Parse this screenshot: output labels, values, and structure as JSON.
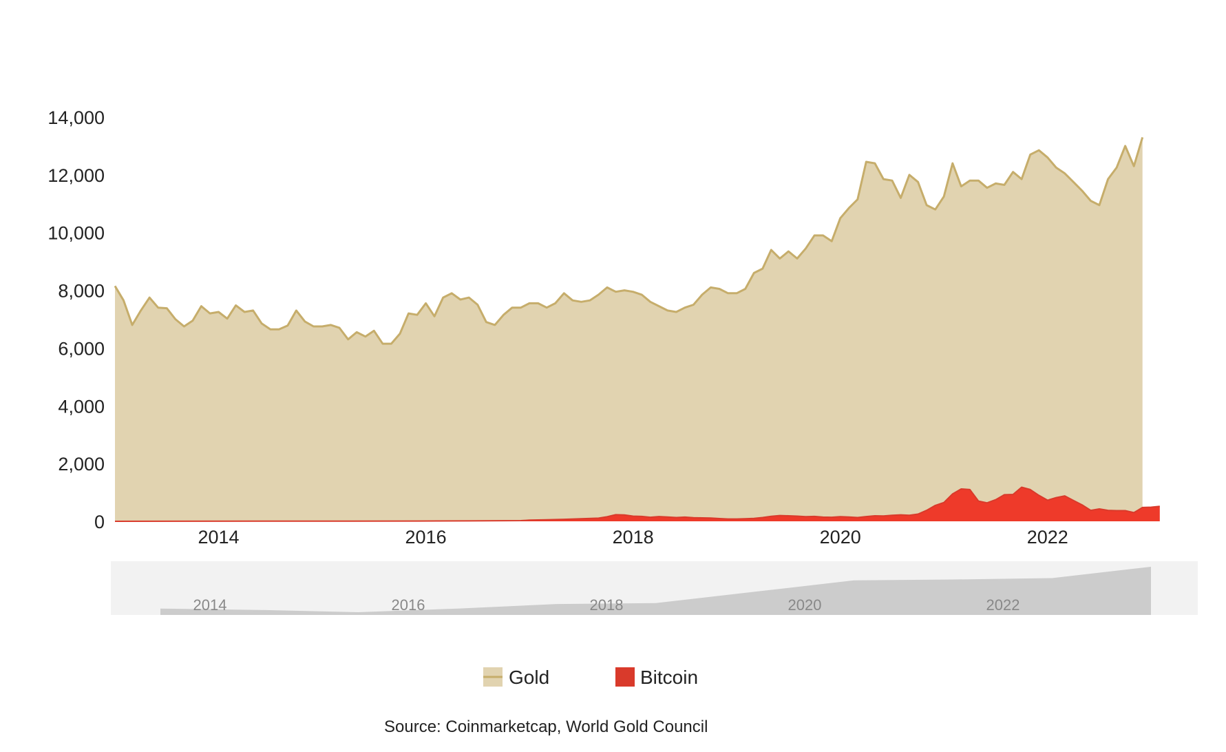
{
  "chart_data": {
    "type": "area",
    "x_axis": {
      "type": "date",
      "range": [
        "2013-01",
        "2023-06"
      ],
      "tick_labels": [
        "2014",
        "2016",
        "2018",
        "2020",
        "2022"
      ]
    },
    "y_axis": {
      "range": [
        0,
        14000
      ],
      "tick_labels": [
        "0",
        "2,000",
        "4,000",
        "6,000",
        "8,000",
        "10,000",
        "12,000",
        "14,000"
      ]
    },
    "stacking": "overlay",
    "grid": false,
    "legend_position": "bottom-center",
    "series": [
      {
        "name": "Gold",
        "color": "#c6ad6b",
        "fill_color": "#e1d3b0",
        "points": [
          [
            "2013-01",
            8150
          ],
          [
            "2013-02",
            7650
          ],
          [
            "2013-03",
            6800
          ],
          [
            "2013-04",
            7300
          ],
          [
            "2013-05",
            7750
          ],
          [
            "2013-06",
            7400
          ],
          [
            "2013-07",
            7380
          ],
          [
            "2013-08",
            7000
          ],
          [
            "2013-09",
            6750
          ],
          [
            "2013-10",
            6950
          ],
          [
            "2013-11",
            7450
          ],
          [
            "2013-12",
            7200
          ],
          [
            "2014-01",
            7250
          ],
          [
            "2014-02",
            7020
          ],
          [
            "2014-03",
            7480
          ],
          [
            "2014-04",
            7250
          ],
          [
            "2014-05",
            7300
          ],
          [
            "2014-06",
            6850
          ],
          [
            "2014-07",
            6650
          ],
          [
            "2014-08",
            6650
          ],
          [
            "2014-09",
            6780
          ],
          [
            "2014-10",
            7300
          ],
          [
            "2014-11",
            6920
          ],
          [
            "2014-12",
            6750
          ],
          [
            "2015-01",
            6750
          ],
          [
            "2015-02",
            6800
          ],
          [
            "2015-03",
            6700
          ],
          [
            "2015-04",
            6300
          ],
          [
            "2015-05",
            6550
          ],
          [
            "2015-06",
            6400
          ],
          [
            "2015-07",
            6600
          ],
          [
            "2015-08",
            6150
          ],
          [
            "2015-09",
            6150
          ],
          [
            "2015-10",
            6500
          ],
          [
            "2015-11",
            7200
          ],
          [
            "2015-12",
            7150
          ],
          [
            "2016-01",
            7550
          ],
          [
            "2016-02",
            7100
          ],
          [
            "2016-03",
            7750
          ],
          [
            "2016-04",
            7900
          ],
          [
            "2016-05",
            7680
          ],
          [
            "2016-06",
            7750
          ],
          [
            "2016-07",
            7500
          ],
          [
            "2016-08",
            6900
          ],
          [
            "2016-09",
            6800
          ],
          [
            "2016-10",
            7150
          ],
          [
            "2016-11",
            7400
          ],
          [
            "2016-12",
            7400
          ],
          [
            "2017-01",
            7550
          ],
          [
            "2017-02",
            7550
          ],
          [
            "2017-03",
            7400
          ],
          [
            "2017-04",
            7550
          ],
          [
            "2017-05",
            7900
          ],
          [
            "2017-06",
            7650
          ],
          [
            "2017-07",
            7600
          ],
          [
            "2017-08",
            7650
          ],
          [
            "2017-09",
            7850
          ],
          [
            "2017-10",
            8100
          ],
          [
            "2017-11",
            7950
          ],
          [
            "2017-12",
            8000
          ],
          [
            "2018-01",
            7950
          ],
          [
            "2018-02",
            7850
          ],
          [
            "2018-03",
            7600
          ],
          [
            "2018-04",
            7450
          ],
          [
            "2018-05",
            7300
          ],
          [
            "2018-06",
            7250
          ],
          [
            "2018-07",
            7400
          ],
          [
            "2018-08",
            7500
          ],
          [
            "2018-09",
            7850
          ],
          [
            "2018-10",
            8100
          ],
          [
            "2018-11",
            8050
          ],
          [
            "2018-12",
            7900
          ],
          [
            "2019-01",
            7900
          ],
          [
            "2019-02",
            8050
          ],
          [
            "2019-03",
            8600
          ],
          [
            "2019-04",
            8750
          ],
          [
            "2019-05",
            9400
          ],
          [
            "2019-06",
            9100
          ],
          [
            "2019-07",
            9350
          ],
          [
            "2019-08",
            9100
          ],
          [
            "2019-09",
            9450
          ],
          [
            "2019-10",
            9900
          ],
          [
            "2019-11",
            9900
          ],
          [
            "2019-12",
            9700
          ],
          [
            "2020-01",
            10500
          ],
          [
            "2020-02",
            10850
          ],
          [
            "2020-03",
            11150
          ],
          [
            "2020-04",
            12450
          ],
          [
            "2020-05",
            12400
          ],
          [
            "2020-06",
            11850
          ],
          [
            "2020-07",
            11800
          ],
          [
            "2020-08",
            11200
          ],
          [
            "2020-09",
            12000
          ],
          [
            "2020-10",
            11750
          ],
          [
            "2020-11",
            10950
          ],
          [
            "2020-12",
            10800
          ],
          [
            "2021-01",
            11250
          ],
          [
            "2021-02",
            12400
          ],
          [
            "2021-03",
            11600
          ],
          [
            "2021-04",
            11800
          ],
          [
            "2021-05",
            11800
          ],
          [
            "2021-06",
            11550
          ],
          [
            "2021-07",
            11700
          ],
          [
            "2021-08",
            11650
          ],
          [
            "2021-09",
            12100
          ],
          [
            "2021-10",
            11850
          ],
          [
            "2021-11",
            12700
          ],
          [
            "2021-12",
            12850
          ],
          [
            "2022-01",
            12600
          ],
          [
            "2022-02",
            12250
          ],
          [
            "2022-03",
            12050
          ],
          [
            "2022-04",
            11750
          ],
          [
            "2022-05",
            11450
          ],
          [
            "2022-06",
            11100
          ],
          [
            "2022-07",
            10950
          ],
          [
            "2022-08",
            11850
          ],
          [
            "2022-09",
            12250
          ],
          [
            "2022-10",
            13000
          ],
          [
            "2022-11",
            12300
          ],
          [
            "2022-12",
            13300
          ]
        ]
      },
      {
        "name": "Bitcoin",
        "color": "#d93a2b",
        "fill_color": "#ee3a2a",
        "points": [
          [
            "2013-01",
            0
          ],
          [
            "2015-12",
            10
          ],
          [
            "2016-06",
            15
          ],
          [
            "2016-12",
            25
          ],
          [
            "2017-01",
            40
          ],
          [
            "2017-03",
            55
          ],
          [
            "2017-05",
            70
          ],
          [
            "2017-07",
            90
          ],
          [
            "2017-09",
            110
          ],
          [
            "2017-10",
            160
          ],
          [
            "2017-11",
            230
          ],
          [
            "2017-12",
            220
          ],
          [
            "2018-01",
            180
          ],
          [
            "2018-02",
            170
          ],
          [
            "2018-03",
            140
          ],
          [
            "2018-04",
            165
          ],
          [
            "2018-05",
            150
          ],
          [
            "2018-06",
            130
          ],
          [
            "2018-07",
            145
          ],
          [
            "2018-08",
            125
          ],
          [
            "2018-09",
            120
          ],
          [
            "2018-10",
            115
          ],
          [
            "2018-11",
            95
          ],
          [
            "2018-12",
            80
          ],
          [
            "2019-01",
            80
          ],
          [
            "2019-02",
            90
          ],
          [
            "2019-03",
            100
          ],
          [
            "2019-04",
            130
          ],
          [
            "2019-05",
            175
          ],
          [
            "2019-06",
            200
          ],
          [
            "2019-07",
            190
          ],
          [
            "2019-08",
            180
          ],
          [
            "2019-09",
            160
          ],
          [
            "2019-10",
            170
          ],
          [
            "2019-11",
            145
          ],
          [
            "2019-12",
            140
          ],
          [
            "2020-01",
            160
          ],
          [
            "2020-02",
            150
          ],
          [
            "2020-03",
            130
          ],
          [
            "2020-04",
            165
          ],
          [
            "2020-05",
            190
          ],
          [
            "2020-06",
            185
          ],
          [
            "2020-07",
            210
          ],
          [
            "2020-08",
            225
          ],
          [
            "2020-09",
            210
          ],
          [
            "2020-10",
            250
          ],
          [
            "2020-11",
            380
          ],
          [
            "2020-12",
            550
          ],
          [
            "2021-01",
            650
          ],
          [
            "2021-02",
            950
          ],
          [
            "2021-03",
            1120
          ],
          [
            "2021-04",
            1100
          ],
          [
            "2021-05",
            700
          ],
          [
            "2021-06",
            640
          ],
          [
            "2021-07",
            750
          ],
          [
            "2021-08",
            920
          ],
          [
            "2021-09",
            930
          ],
          [
            "2021-10",
            1180
          ],
          [
            "2021-11",
            1100
          ],
          [
            "2021-12",
            900
          ],
          [
            "2022-01",
            730
          ],
          [
            "2022-02",
            820
          ],
          [
            "2022-03",
            880
          ],
          [
            "2022-04",
            720
          ],
          [
            "2022-05",
            570
          ],
          [
            "2022-06",
            380
          ],
          [
            "2022-07",
            430
          ],
          [
            "2022-08",
            380
          ],
          [
            "2022-09",
            370
          ],
          [
            "2022-10",
            370
          ],
          [
            "2022-11",
            300
          ],
          [
            "2022-12",
            480
          ],
          [
            "2023-01",
            490
          ],
          [
            "2023-02",
            520
          ]
        ]
      }
    ],
    "navigator": {
      "tick_labels": [
        "2014",
        "2016",
        "2018",
        "2020",
        "2022"
      ],
      "color": "#cccccc",
      "background": "#f2f2f2",
      "points": [
        [
          "2013-06",
          0.08
        ],
        [
          "2014-06",
          0.05
        ],
        [
          "2015-06",
          0.0
        ],
        [
          "2016-06",
          0.08
        ],
        [
          "2017-06",
          0.18
        ],
        [
          "2018-06",
          0.2
        ],
        [
          "2019-06",
          0.45
        ],
        [
          "2020-06",
          0.7
        ],
        [
          "2021-06",
          0.72
        ],
        [
          "2022-06",
          0.75
        ],
        [
          "2023-06",
          1.0
        ]
      ]
    },
    "source": "Source: Coinmarketcap, World Gold Council"
  }
}
